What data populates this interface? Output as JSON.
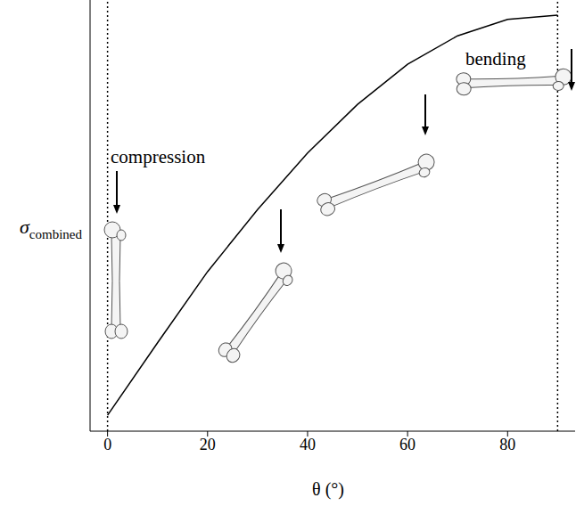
{
  "chart_data": {
    "type": "line",
    "xlabel": "θ (°)",
    "ylabel": "σcombined",
    "x": [
      0,
      10,
      20,
      30,
      40,
      50,
      60,
      70,
      80,
      90
    ],
    "values": [
      0.037,
      0.205,
      0.37,
      0.514,
      0.645,
      0.758,
      0.851,
      0.917,
      0.955,
      0.965
    ],
    "color": "#000000",
    "xlim": [
      -3.5,
      93.5
    ],
    "xticks": [
      0,
      20,
      40,
      60,
      80
    ],
    "ylim": [
      0,
      1
    ],
    "vlines": [
      0,
      90
    ],
    "tick_labels": "x",
    "grid": false,
    "annotations": [
      "compression",
      "bending"
    ]
  }
}
